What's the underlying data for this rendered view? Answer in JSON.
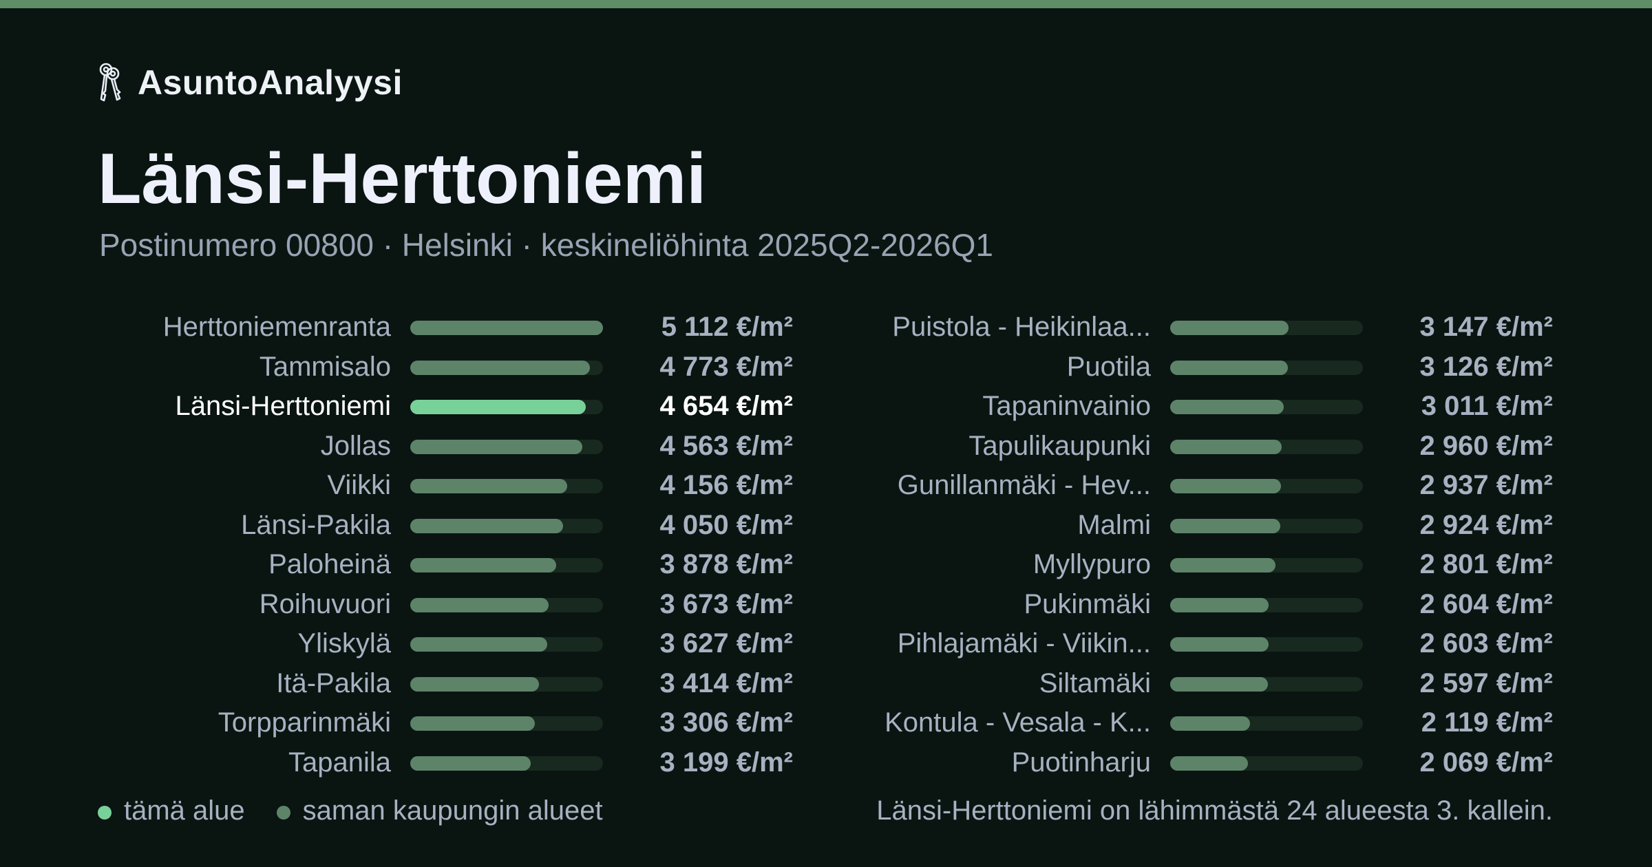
{
  "brand": {
    "name": "AsuntoAnalyysi",
    "icon": "keys-icon"
  },
  "header": {
    "title": "Länsi-Herttoniemi",
    "subtitle": "Postinumero 00800 · Helsinki · keskineliöhinta 2025Q2-2026Q1"
  },
  "colors": {
    "highlight": "#79d19a",
    "bar": "#5d8469",
    "track": "#18291f",
    "accent_bar": "#5e8f67",
    "background": "#0a1512"
  },
  "chart_data": {
    "type": "bar",
    "orientation": "horizontal",
    "value_unit": "€/m²",
    "xlim": [
      0,
      5112
    ],
    "highlight": "Länsi-Herttoniemi",
    "columns": [
      {
        "rows": [
          {
            "name": "Herttoniemenranta",
            "value": 5112,
            "label": "5 112 €/m²"
          },
          {
            "name": "Tammisalo",
            "value": 4773,
            "label": "4 773 €/m²"
          },
          {
            "name": "Länsi-Herttoniemi",
            "value": 4654,
            "label": "4 654 €/m²"
          },
          {
            "name": "Jollas",
            "value": 4563,
            "label": "4 563 €/m²"
          },
          {
            "name": "Viikki",
            "value": 4156,
            "label": "4 156 €/m²"
          },
          {
            "name": "Länsi-Pakila",
            "value": 4050,
            "label": "4 050 €/m²"
          },
          {
            "name": "Paloheinä",
            "value": 3878,
            "label": "3 878 €/m²"
          },
          {
            "name": "Roihuvuori",
            "value": 3673,
            "label": "3 673 €/m²"
          },
          {
            "name": "Yliskylä",
            "value": 3627,
            "label": "3 627 €/m²"
          },
          {
            "name": "Itä-Pakila",
            "value": 3414,
            "label": "3 414 €/m²"
          },
          {
            "name": "Torpparinmäki",
            "value": 3306,
            "label": "3 306 €/m²"
          },
          {
            "name": "Tapanila",
            "value": 3199,
            "label": "3 199 €/m²"
          }
        ]
      },
      {
        "rows": [
          {
            "name": "Puistola - Heikinlaa...",
            "value": 3147,
            "label": "3 147 €/m²"
          },
          {
            "name": "Puotila",
            "value": 3126,
            "label": "3 126 €/m²"
          },
          {
            "name": "Tapaninvainio",
            "value": 3011,
            "label": "3 011 €/m²"
          },
          {
            "name": "Tapulikaupunki",
            "value": 2960,
            "label": "2 960 €/m²"
          },
          {
            "name": "Gunillanmäki - Hev...",
            "value": 2937,
            "label": "2 937 €/m²"
          },
          {
            "name": "Malmi",
            "value": 2924,
            "label": "2 924 €/m²"
          },
          {
            "name": "Myllypuro",
            "value": 2801,
            "label": "2 801 €/m²"
          },
          {
            "name": "Pukinmäki",
            "value": 2604,
            "label": "2 604 €/m²"
          },
          {
            "name": "Pihlajamäki - Viikin...",
            "value": 2603,
            "label": "2 603 €/m²"
          },
          {
            "name": "Siltamäki",
            "value": 2597,
            "label": "2 597 €/m²"
          },
          {
            "name": "Kontula - Vesala - K...",
            "value": 2119,
            "label": "2 119 €/m²"
          },
          {
            "name": "Puotinharju",
            "value": 2069,
            "label": "2 069 €/m²"
          }
        ]
      }
    ]
  },
  "legend": {
    "this_area": "tämä alue",
    "same_city": "saman kaupungin alueet"
  },
  "summary": "Länsi-Herttoniemi on lähimmästä 24 alueesta 3. kallein."
}
